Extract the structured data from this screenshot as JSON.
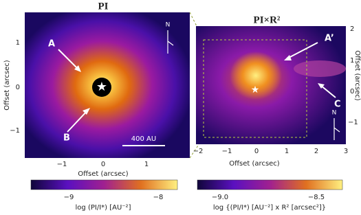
{
  "panels": [
    {
      "title": "PI",
      "y_label": "Offset (arcsec)",
      "x_label": "Offset (arcsec)",
      "x_ticks": [
        "−1",
        "0",
        "1"
      ],
      "y_ticks": [
        "1",
        "0",
        "−1"
      ],
      "annotations": {
        "a": "A",
        "b": "B",
        "north": "N",
        "scale_bar": "400 AU"
      },
      "colorbar": {
        "ticks": [
          "−9",
          "−8"
        ],
        "label": "log (PI/I*) [AU⁻²]"
      }
    },
    {
      "title": "PI×R²",
      "y_label": "Offset (arcsec)",
      "x_label": "Offset (arcsec)",
      "x_ticks": [
        "−2",
        "−1",
        "0",
        "1",
        "2",
        "3"
      ],
      "y_ticks": [
        "2",
        "1",
        "0",
        "−1"
      ],
      "annotations": {
        "a": "A’",
        "c": "C",
        "north": "N"
      },
      "colorbar": {
        "ticks": [
          "−9.0",
          "−8.5"
        ],
        "label": "log {(PI/I*) [AU⁻²] x R² [arcsec²]}"
      }
    }
  ]
}
